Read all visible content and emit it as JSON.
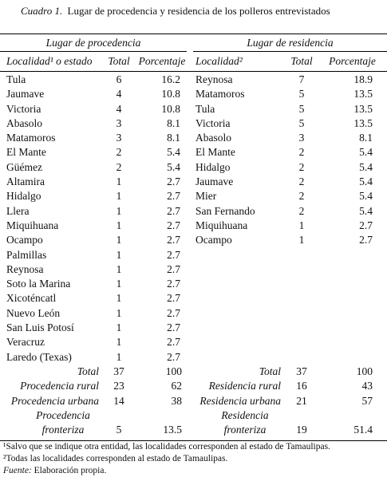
{
  "title": {
    "label": "Cuadro 1.",
    "text": "Lugar de procedencia y residencia de los polleros entrevistados"
  },
  "table": {
    "groups": [
      "Lugar de procedencia",
      "Lugar de residencia"
    ],
    "columns": [
      "Localidad¹ o estado",
      "Total",
      "Porcentaje",
      "Localidad²",
      "Total",
      "Porcentaje"
    ],
    "left_rows": [
      [
        "Tula",
        6,
        16.2
      ],
      [
        "Jaumave",
        4,
        10.8
      ],
      [
        "Victoria",
        4,
        10.8
      ],
      [
        "Abasolo",
        3,
        8.1
      ],
      [
        "Matamoros",
        3,
        8.1
      ],
      [
        "El Mante",
        2,
        5.4
      ],
      [
        "Güémez",
        2,
        5.4
      ],
      [
        "Altamira",
        1,
        2.7
      ],
      [
        "Hidalgo",
        1,
        2.7
      ],
      [
        "Llera",
        1,
        2.7
      ],
      [
        "Miquihuana",
        1,
        2.7
      ],
      [
        "Ocampo",
        1,
        2.7
      ],
      [
        "Palmillas",
        1,
        2.7
      ],
      [
        "Reynosa",
        1,
        2.7
      ],
      [
        "Soto la Marina",
        1,
        2.7
      ],
      [
        "Xicoténcatl",
        1,
        2.7
      ],
      [
        "Nuevo León",
        1,
        2.7
      ],
      [
        "San Luis Potosí",
        1,
        2.7
      ],
      [
        "Veracruz",
        1,
        2.7
      ],
      [
        "Laredo (Texas)",
        1,
        2.7
      ]
    ],
    "right_rows": [
      [
        "Reynosa",
        7,
        18.9
      ],
      [
        "Matamoros",
        5,
        13.5
      ],
      [
        "Tula",
        5,
        13.5
      ],
      [
        "Victoria",
        5,
        13.5
      ],
      [
        "Abasolo",
        3,
        8.1
      ],
      [
        "El Mante",
        2,
        5.4
      ],
      [
        "Hidalgo",
        2,
        5.4
      ],
      [
        "Jaumave",
        2,
        5.4
      ],
      [
        "Mier",
        2,
        5.4
      ],
      [
        "San Fernando",
        2,
        5.4
      ],
      [
        "Miquihuana",
        1,
        2.7
      ],
      [
        "Ocampo",
        1,
        2.7
      ]
    ],
    "summary": [
      {
        "left": [
          "Total",
          37,
          100
        ],
        "right": [
          "Total",
          37,
          100
        ]
      },
      {
        "left": [
          "Procedencia rural",
          23,
          62
        ],
        "right": [
          "Residencia rural",
          16,
          43
        ]
      },
      {
        "left": [
          "Procedencia urbana",
          14,
          38
        ],
        "right": [
          "Residencia urbana",
          21,
          57
        ]
      },
      {
        "left": [
          "Procedencia fronteriza",
          5,
          13.5
        ],
        "right": [
          "Residencia fronteriza",
          19,
          51.4
        ]
      }
    ]
  },
  "footnotes": [
    "¹Salvo que se indique otra entidad, las localidades corresponden al estado de Tamaulipas.",
    "²Todas las localidades corresponden al estado de Tamaulipas."
  ],
  "source": {
    "label": "Fuente:",
    "text": "Elaboración propia."
  }
}
